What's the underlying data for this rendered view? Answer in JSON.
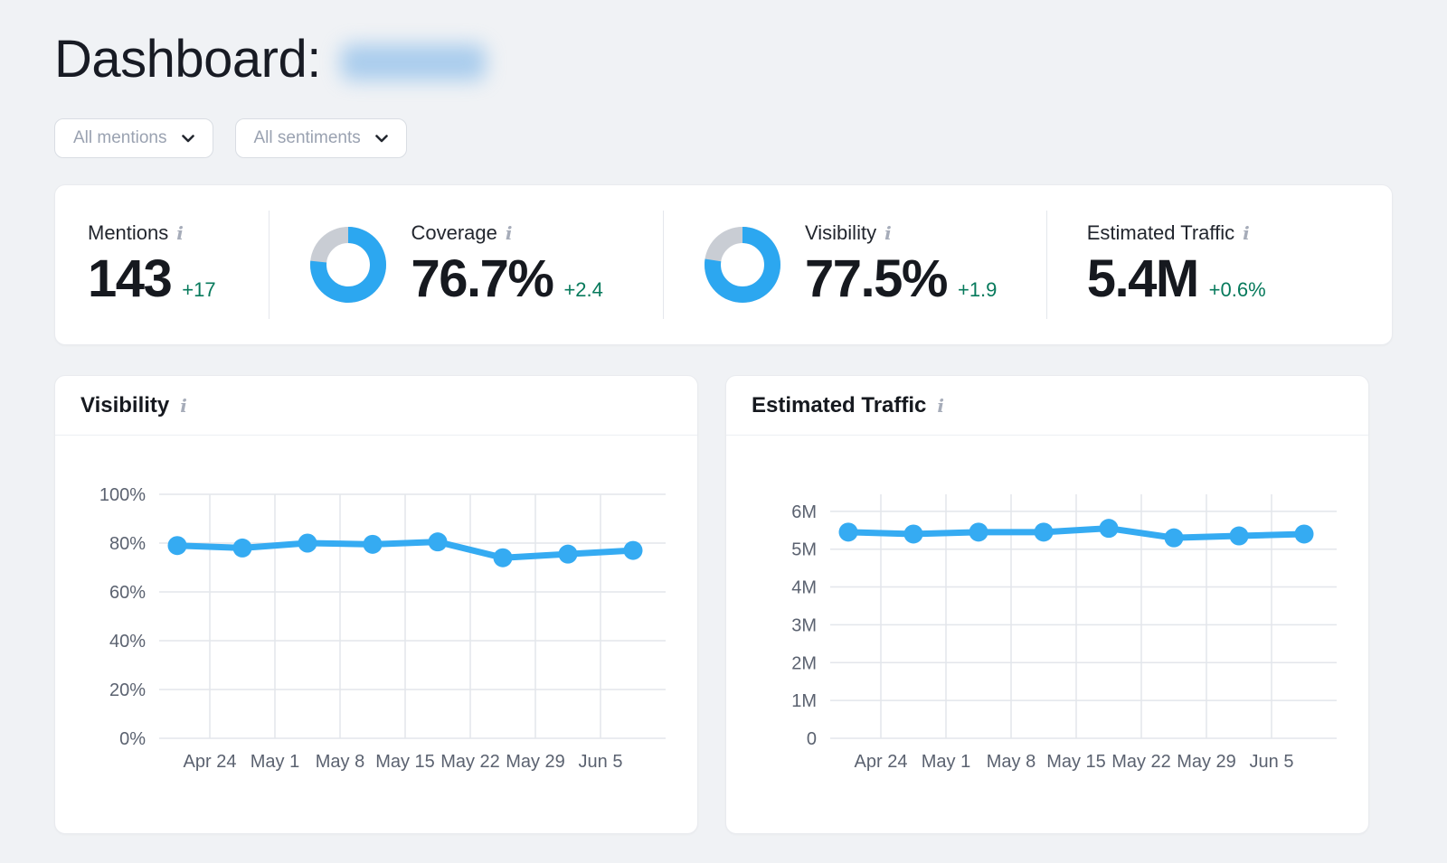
{
  "colors": {
    "accent_blue": "#35ABF2",
    "donut_blue": "#2CA7F0",
    "donut_track": "#C9CDD4",
    "delta_green": "#077A5C",
    "grid_line": "#E3E6EB",
    "tick_text": "#5B6270",
    "page_background": "#F0F2F5"
  },
  "header": {
    "title": "Dashboard:",
    "name_redacted": true
  },
  "filters": {
    "mentions": {
      "label": "All mentions"
    },
    "sentiments": {
      "label": "All sentiments"
    }
  },
  "stats": {
    "mentions": {
      "label": "Mentions",
      "value": "143",
      "delta": "+17"
    },
    "coverage": {
      "label": "Coverage",
      "value": "76.7%",
      "delta": "+2.4",
      "donut_pct": 76.7
    },
    "visibility": {
      "label": "Visibility",
      "value": "77.5%",
      "delta": "+1.9",
      "donut_pct": 77.5
    },
    "estimated_traffic": {
      "label": "Estimated Traffic",
      "value": "5.4M",
      "delta": "+0.6%"
    }
  },
  "chart_data": [
    {
      "id": "visibility",
      "type": "line",
      "title": "Visibility",
      "x_axis_labels": [
        "Apr 24",
        "May 1",
        "May 8",
        "May 15",
        "May 22",
        "May 29",
        "Jun 5"
      ],
      "values": [
        79,
        78,
        80,
        79.5,
        80.5,
        74,
        75.5,
        77
      ],
      "unit": "%",
      "ylim": [
        0,
        100
      ],
      "y_ticks": [
        {
          "v": 0,
          "label": "0%"
        },
        {
          "v": 20,
          "label": "20%"
        },
        {
          "v": 40,
          "label": "40%"
        },
        {
          "v": 60,
          "label": "60%"
        },
        {
          "v": 80,
          "label": "80%"
        },
        {
          "v": 100,
          "label": "100%"
        }
      ],
      "grid": true,
      "legend": false,
      "line_color": "#35ABF2"
    },
    {
      "id": "estimated_traffic",
      "type": "line",
      "title": "Estimated Traffic",
      "x_axis_labels": [
        "Apr 24",
        "May 1",
        "May 8",
        "May 15",
        "May 22",
        "May 29",
        "Jun 5"
      ],
      "values": [
        5.45,
        5.4,
        5.45,
        5.45,
        5.55,
        5.3,
        5.35,
        5.4
      ],
      "unit": "M",
      "ylim": [
        0,
        6.45
      ],
      "y_ticks": [
        {
          "v": 0,
          "label": "0"
        },
        {
          "v": 1,
          "label": "1M"
        },
        {
          "v": 2,
          "label": "2M"
        },
        {
          "v": 3,
          "label": "3M"
        },
        {
          "v": 4,
          "label": "4M"
        },
        {
          "v": 5,
          "label": "5M"
        },
        {
          "v": 6,
          "label": "6M"
        }
      ],
      "grid": true,
      "legend": false,
      "line_color": "#35ABF2"
    }
  ]
}
